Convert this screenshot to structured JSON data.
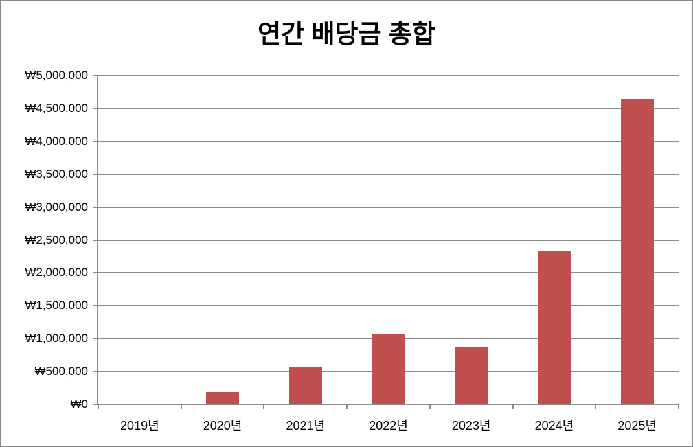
{
  "window": {
    "background": "#ffffff",
    "border_color": "#898989"
  },
  "chart_data": {
    "type": "bar",
    "title": "연간 배당금 총합",
    "categories": [
      "2019년",
      "2020년",
      "2021년",
      "2022년",
      "2023년",
      "2024년",
      "2025년"
    ],
    "values": [
      0,
      190000,
      570000,
      1080000,
      880000,
      2340000,
      4650000
    ],
    "series": [
      {
        "name": "연간 배당금 총합",
        "values": [
          0,
          190000,
          570000,
          1080000,
          880000,
          2340000,
          4650000
        ]
      }
    ],
    "xlabel": "",
    "ylabel": "",
    "ylim": [
      0,
      5000000
    ],
    "ytick_step": 500000,
    "yticks": [
      {
        "value": 5000000,
        "label": "₩5,000,000"
      },
      {
        "value": 4500000,
        "label": "₩4,500,000"
      },
      {
        "value": 4000000,
        "label": "₩4,000,000"
      },
      {
        "value": 3500000,
        "label": "₩3,500,000"
      },
      {
        "value": 3000000,
        "label": "₩3,000,000"
      },
      {
        "value": 2500000,
        "label": "₩2,500,000"
      },
      {
        "value": 2000000,
        "label": "₩2,000,000"
      },
      {
        "value": 1500000,
        "label": "₩1,500,000"
      },
      {
        "value": 1000000,
        "label": "₩1,000,000"
      },
      {
        "value": 500000,
        "label": "₩500,000"
      },
      {
        "value": 0,
        "label": "₩0"
      }
    ],
    "currency_prefix": "₩",
    "grid": true,
    "legend": false,
    "bar_color": "#C0504D",
    "gridline_color": "#8B8B8B",
    "axis_color": "#8B8B8B",
    "text_color": "#000000"
  }
}
